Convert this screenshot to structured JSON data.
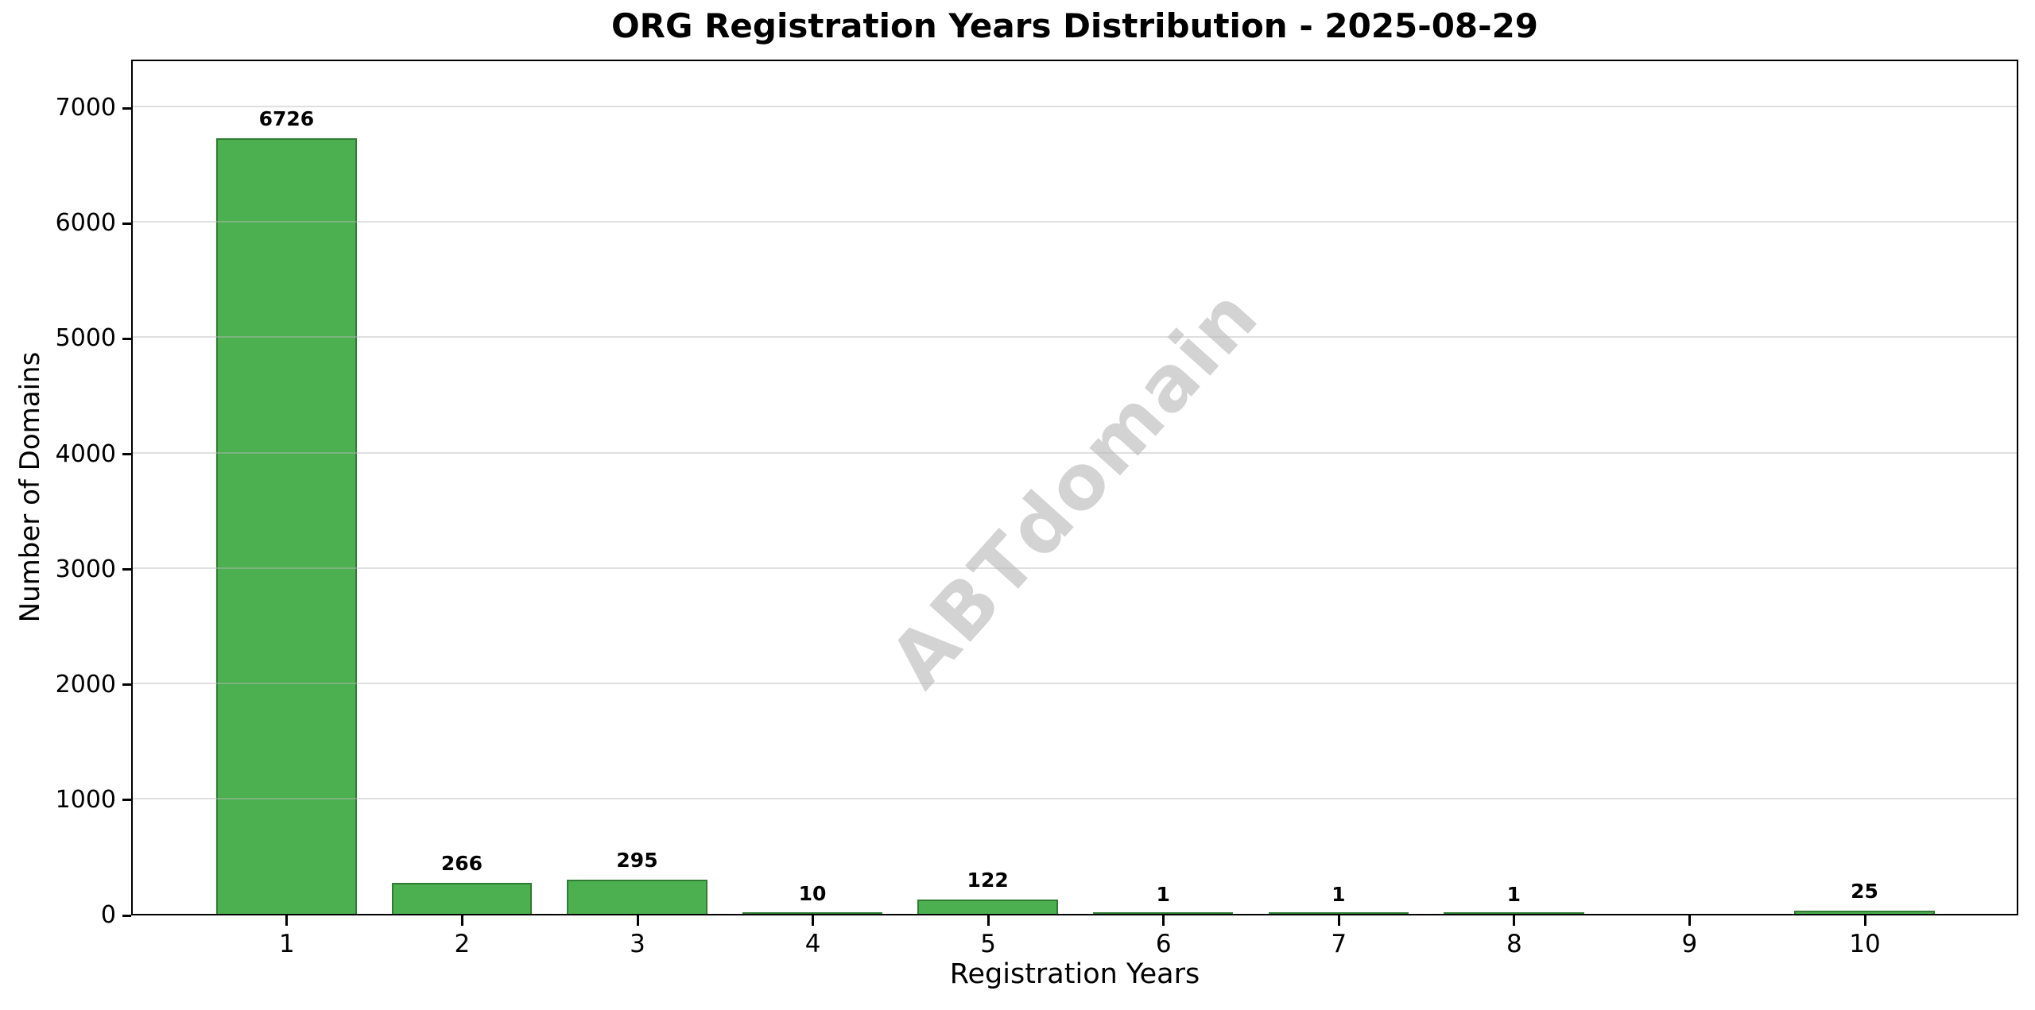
{
  "chart_data": {
    "type": "bar",
    "title": "ORG Registration Years Distribution - 2025-08-29",
    "xlabel": "Registration Years",
    "ylabel": "Number of Domains",
    "categories": [
      "1",
      "2",
      "3",
      "4",
      "5",
      "6",
      "7",
      "8",
      "9",
      "10"
    ],
    "values": [
      6726,
      266,
      295,
      10,
      122,
      1,
      1,
      1,
      null,
      25
    ],
    "bar_labels": [
      "6726",
      "266",
      "295",
      "10",
      "122",
      "1",
      "1",
      "1",
      "",
      "25"
    ],
    "yticks": [
      0,
      1000,
      2000,
      3000,
      4000,
      5000,
      6000,
      7000
    ],
    "ylim": [
      0,
      7422
    ],
    "xlim": [
      0.112,
      10.875
    ],
    "bar_width": 0.8,
    "grid": true,
    "legend": null,
    "watermark": "ABTdomain",
    "colors": {
      "bar_fill": "#4CAF50",
      "bar_edge": "#2E7D32",
      "grid_line": "rgba(185,185,185,0.45)",
      "watermark": "#d3d3d3",
      "text": "#000000",
      "background": "#ffffff"
    }
  }
}
